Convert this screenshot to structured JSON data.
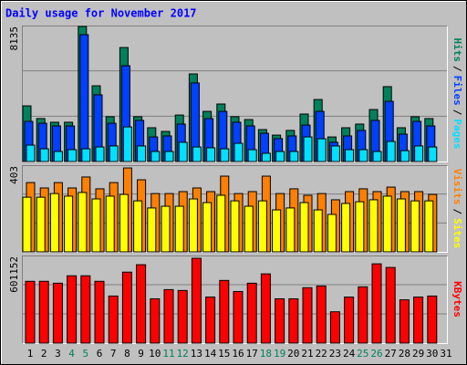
{
  "chart_data": {
    "type": "bar",
    "title": "Daily usage for November 2017",
    "legend_separator": "/",
    "categories": [
      "1",
      "2",
      "3",
      "4",
      "5",
      "6",
      "7",
      "8",
      "9",
      "10",
      "11",
      "12",
      "13",
      "14",
      "15",
      "16",
      "17",
      "18",
      "19",
      "20",
      "21",
      "22",
      "23",
      "24",
      "25",
      "26",
      "27",
      "28",
      "29",
      "30",
      "31"
    ],
    "category_colors": [
      "#000000",
      "#000000",
      "#000000",
      "#00805c",
      "#00805c",
      "#000000",
      "#000000",
      "#000000",
      "#000000",
      "#000000",
      "#00805c",
      "#00805c",
      "#000000",
      "#000000",
      "#000000",
      "#000000",
      "#000000",
      "#00805c",
      "#00805c",
      "#000000",
      "#000000",
      "#000000",
      "#000000",
      "#000000",
      "#00805c",
      "#00805c",
      "#000000",
      "#000000",
      "#000000",
      "#000000",
      "#000000"
    ],
    "panels": [
      {
        "ylim": [
          0,
          8135
        ],
        "yticks": [
          8135
        ],
        "grid": true,
        "series": [
          {
            "name": "Hits",
            "color": "#00805c",
            "values": [
              3330,
              2570,
              2350,
              2350,
              8080,
              4530,
              2680,
              6820,
              2680,
              2020,
              1800,
              2780,
              5240,
              3000,
              3440,
              2680,
              2510,
              1910,
              1580,
              1860,
              2840,
              3710,
              1470,
              2020,
              2240,
              3110,
              4480,
              2020,
              2680,
              2570,
              null
            ]
          },
          {
            "name": "Files",
            "color": "#0040ff",
            "values": [
              2400,
              2290,
              2130,
              2130,
              7590,
              3990,
              2290,
              5730,
              2460,
              1470,
              1530,
              2240,
              4700,
              2570,
              3000,
              2350,
              2130,
              1690,
              1370,
              1530,
              2180,
              3000,
              1150,
              1530,
              1860,
              2460,
              3600,
              1640,
              2400,
              2130,
              null
            ]
          },
          {
            "name": "Pages",
            "color": "#00e0ff",
            "values": [
              980,
              760,
              600,
              710,
              760,
              870,
              930,
              2070,
              930,
              600,
              600,
              1150,
              870,
              820,
              760,
              1090,
              710,
              490,
              600,
              600,
              1470,
              1360,
              930,
              710,
              710,
              600,
              1200,
              650,
              930,
              870,
              null
            ]
          }
        ]
      },
      {
        "ylim": [
          0,
          403
        ],
        "yticks": [
          403
        ],
        "grid": true,
        "series": [
          {
            "name": "Visits",
            "color": "#ff8000",
            "values": [
              322,
              297,
              322,
              297,
              348,
              293,
              322,
              390,
              335,
              271,
              271,
              280,
              297,
              280,
              352,
              271,
              280,
              352,
              271,
              293,
              263,
              271,
              242,
              280,
              293,
              280,
              301,
              280,
              280,
              267,
              null
            ]
          },
          {
            "name": "Sites",
            "color": "#ffff00",
            "values": [
              254,
              254,
              271,
              259,
              276,
              246,
              259,
              267,
              237,
              204,
              212,
              212,
              246,
              229,
              263,
              237,
              212,
              237,
              195,
              204,
              229,
              195,
              174,
              225,
              233,
              242,
              259,
              246,
              237,
              237,
              null
            ]
          }
        ]
      },
      {
        "ylim": [
          0,
          601152
        ],
        "yticks": [
          601152
        ],
        "grid": true,
        "series": [
          {
            "name": "KBytes",
            "color": "#ff0000",
            "values": [
              424000,
              424000,
              411000,
              462000,
              462000,
              424000,
              323000,
              487000,
              538000,
              304000,
              367000,
              361000,
              582000,
              316000,
              430000,
              354000,
              411000,
              475000,
              304000,
              304000,
              380000,
              392000,
              215000,
              316000,
              386000,
              544000,
              519000,
              297000,
              316000,
              323000,
              null
            ]
          }
        ]
      }
    ]
  }
}
